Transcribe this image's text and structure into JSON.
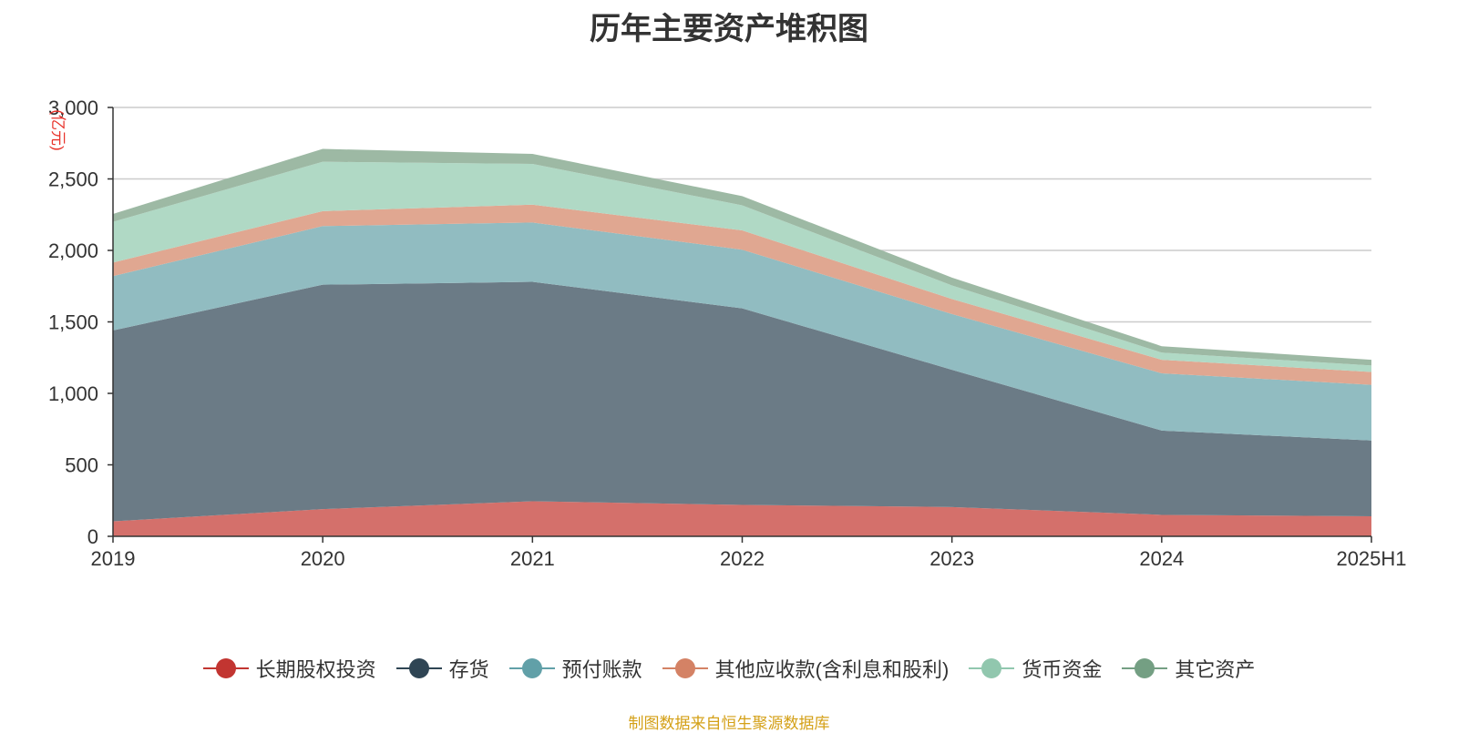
{
  "title": "历年主要资产堆积图",
  "source_note": "制图数据来自恒生聚源数据库",
  "chart_data": {
    "type": "area",
    "stacked": true,
    "title": "历年主要资产堆积图",
    "ylabel": "(亿元)",
    "xlabel": "",
    "categories": [
      "2019",
      "2020",
      "2021",
      "2022",
      "2023",
      "2024",
      "2025H1"
    ],
    "ylim": [
      0,
      3000
    ],
    "yticks": [
      0,
      500,
      1000,
      1500,
      2000,
      2500,
      3000
    ],
    "ytick_labels": [
      "0",
      "500",
      "1,000",
      "1,500",
      "2,000",
      "2,500",
      "3,000"
    ],
    "grid": true,
    "legend_position": "bottom",
    "series": [
      {
        "name": "长期股权投资",
        "color": "#d4706b",
        "legend_color": "#c23531",
        "values": [
          105,
          190,
          245,
          220,
          205,
          150,
          140
        ]
      },
      {
        "name": "存货",
        "color": "#6b7b86",
        "legend_color": "#2f4554",
        "values": [
          1335,
          1570,
          1535,
          1375,
          960,
          590,
          530
        ]
      },
      {
        "name": "预付账款",
        "color": "#91bcc1",
        "legend_color": "#61a0a8",
        "values": [
          380,
          410,
          415,
          410,
          390,
          400,
          390
        ]
      },
      {
        "name": "其他应收款(含利息和股利)",
        "color": "#e0a791",
        "legend_color": "#d48265",
        "values": [
          95,
          105,
          125,
          135,
          105,
          95,
          90
        ]
      },
      {
        "name": "货币资金",
        "color": "#b0d9c5",
        "legend_color": "#91c7ae",
        "values": [
          285,
          345,
          285,
          175,
          95,
          50,
          45
        ]
      },
      {
        "name": "其它资产",
        "color": "#9db9a4",
        "legend_color": "#749f83",
        "values": [
          55,
          90,
          70,
          65,
          55,
          45,
          40
        ]
      }
    ]
  }
}
